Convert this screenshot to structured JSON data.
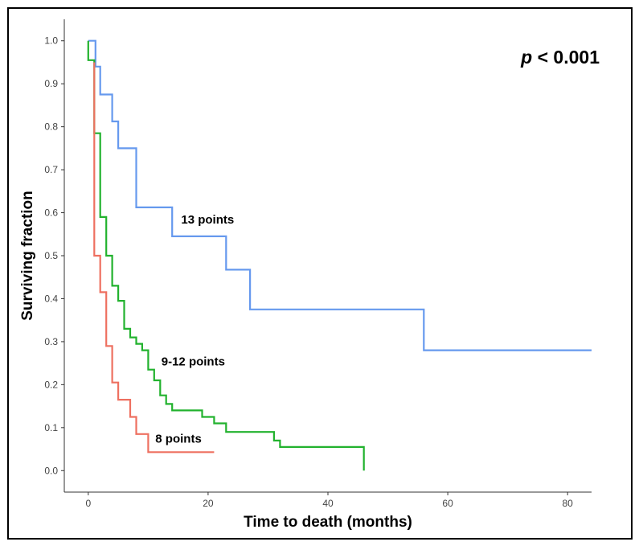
{
  "chart_data": {
    "type": "line",
    "step": true,
    "title": "",
    "xlabel": "Time to death (months)",
    "ylabel": "Surviving fraction",
    "xlim": [
      -4,
      84
    ],
    "ylim": [
      -0.05,
      1.05
    ],
    "xticks": [
      0,
      20,
      40,
      60,
      80
    ],
    "xtick_labels": [
      "0",
      "20",
      "40",
      "60",
      "80"
    ],
    "yticks": [
      0.0,
      0.1,
      0.2,
      0.3,
      0.4,
      0.5,
      0.6,
      0.7,
      0.8,
      0.9,
      1.0
    ],
    "ytick_labels": [
      "0.0",
      "0.1",
      "0.2",
      "0.3",
      "0.4",
      "0.5",
      "0.6",
      "0.7",
      "0.8",
      "0.9",
      "1.0"
    ],
    "annotation": {
      "p_italic": "p",
      "p_rest": " < 0.001"
    },
    "series": [
      {
        "name": "13 points",
        "color": "#6699EE",
        "points": [
          [
            0,
            1.0
          ],
          [
            1.2,
            1.0
          ],
          [
            1.2,
            0.94
          ],
          [
            2,
            0.94
          ],
          [
            2,
            0.875
          ],
          [
            4,
            0.875
          ],
          [
            4,
            0.8125
          ],
          [
            5,
            0.8125
          ],
          [
            5,
            0.75
          ],
          [
            8,
            0.75
          ],
          [
            8,
            0.6125
          ],
          [
            14,
            0.6125
          ],
          [
            14,
            0.545
          ],
          [
            23,
            0.545
          ],
          [
            23,
            0.4675
          ],
          [
            27,
            0.4675
          ],
          [
            27,
            0.375
          ],
          [
            56,
            0.375
          ],
          [
            56,
            0.28
          ],
          [
            84,
            0.28
          ]
        ],
        "label_at": [
          15.5,
          0.575
        ]
      },
      {
        "name": "9-12 points",
        "color": "#22B22E",
        "points": [
          [
            0,
            1.0
          ],
          [
            0,
            0.955
          ],
          [
            1,
            0.955
          ],
          [
            1,
            0.785
          ],
          [
            2,
            0.785
          ],
          [
            2,
            0.59
          ],
          [
            3,
            0.59
          ],
          [
            3,
            0.5
          ],
          [
            4,
            0.5
          ],
          [
            4,
            0.43
          ],
          [
            5,
            0.43
          ],
          [
            5,
            0.395
          ],
          [
            6,
            0.395
          ],
          [
            6,
            0.33
          ],
          [
            7,
            0.33
          ],
          [
            7,
            0.31
          ],
          [
            8,
            0.31
          ],
          [
            8,
            0.295
          ],
          [
            9,
            0.295
          ],
          [
            9,
            0.28
          ],
          [
            10,
            0.28
          ],
          [
            10,
            0.235
          ],
          [
            11,
            0.235
          ],
          [
            11,
            0.21
          ],
          [
            12,
            0.21
          ],
          [
            12,
            0.175
          ],
          [
            13,
            0.175
          ],
          [
            13,
            0.155
          ],
          [
            14,
            0.155
          ],
          [
            14,
            0.14
          ],
          [
            19,
            0.14
          ],
          [
            19,
            0.125
          ],
          [
            21,
            0.125
          ],
          [
            21,
            0.11
          ],
          [
            23,
            0.11
          ],
          [
            23,
            0.09
          ],
          [
            31,
            0.09
          ],
          [
            31,
            0.07
          ],
          [
            32,
            0.07
          ],
          [
            32,
            0.055
          ],
          [
            46,
            0.055
          ],
          [
            46,
            0.0
          ]
        ],
        "label_at": [
          12.2,
          0.245
        ]
      },
      {
        "name": "8 points",
        "color": "#EE7060",
        "points": [
          [
            1,
            0.95
          ],
          [
            1,
            0.5
          ],
          [
            2,
            0.5
          ],
          [
            2,
            0.415
          ],
          [
            3,
            0.415
          ],
          [
            3,
            0.29
          ],
          [
            4,
            0.29
          ],
          [
            4,
            0.205
          ],
          [
            5,
            0.205
          ],
          [
            5,
            0.165
          ],
          [
            7,
            0.165
          ],
          [
            7,
            0.125
          ],
          [
            8,
            0.125
          ],
          [
            8,
            0.085
          ],
          [
            9,
            0.085
          ],
          [
            9,
            0.085
          ],
          [
            10,
            0.085
          ],
          [
            10,
            0.043
          ],
          [
            21,
            0.043
          ]
        ],
        "label_at": [
          11.2,
          0.065
        ]
      }
    ]
  }
}
